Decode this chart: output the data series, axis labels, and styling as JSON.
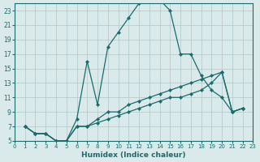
{
  "xlabel": "Humidex (Indice chaleur)",
  "bg_color": "#daeaea",
  "grid_color": "#b0c8c8",
  "line_color": "#1a6b6b",
  "xlim": [
    0,
    23
  ],
  "ylim": [
    5,
    24
  ],
  "xticks": [
    0,
    1,
    2,
    3,
    4,
    5,
    6,
    7,
    8,
    9,
    10,
    11,
    12,
    13,
    14,
    15,
    16,
    17,
    18,
    19,
    20,
    21,
    22,
    23
  ],
  "yticks": [
    5,
    7,
    9,
    11,
    13,
    15,
    17,
    19,
    21,
    23
  ],
  "lines": [
    {
      "x": [
        1,
        2,
        3,
        4,
        5,
        6,
        7,
        8,
        9,
        10,
        11,
        12,
        13,
        14,
        15,
        16,
        17,
        18,
        19,
        20,
        21,
        22
      ],
      "y": [
        7,
        6,
        6,
        5,
        5,
        8,
        16,
        10,
        18,
        20,
        22,
        24,
        24.5,
        24.5,
        23,
        17,
        17,
        14,
        12,
        11,
        9,
        9.5
      ]
    },
    {
      "x": [
        1,
        2,
        3,
        4,
        5,
        6,
        7,
        8,
        9,
        10,
        11,
        12,
        13,
        14,
        15,
        16,
        17,
        18,
        19,
        20,
        21,
        22
      ],
      "y": [
        7,
        6,
        6,
        5,
        5,
        7,
        7,
        8,
        9,
        9,
        10,
        10.5,
        11,
        11.5,
        12,
        12.5,
        13,
        13.5,
        14,
        14.5,
        9,
        9.5
      ]
    },
    {
      "x": [
        1,
        2,
        3,
        4,
        5,
        6,
        7,
        8,
        9,
        10,
        11,
        12,
        13,
        14,
        15,
        16,
        17,
        18,
        19,
        20,
        21,
        22
      ],
      "y": [
        7,
        6,
        6,
        5,
        5,
        7,
        7,
        7.5,
        8,
        8.5,
        9,
        9.5,
        10,
        10.5,
        11,
        11,
        11.5,
        12,
        13,
        14.5,
        9,
        9.5
      ]
    }
  ]
}
